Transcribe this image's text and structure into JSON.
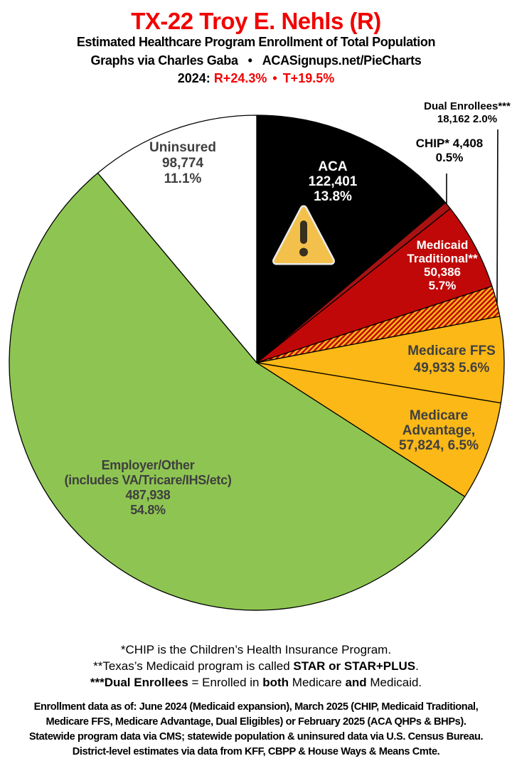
{
  "header": {
    "title": "TX-22 Troy E. Nehls (R)",
    "subtitle": "Estimated Healthcare Program Enrollment of Total Population",
    "credit_left": "Graphs via Charles Gaba",
    "credit_bullet": "•",
    "credit_right": "ACASignups.net/PieCharts",
    "year_label": "2024:",
    "partisan_lean_1": "R+24.3%",
    "partisan_bullet": "•",
    "partisan_lean_2": "T+19.5%"
  },
  "colors": {
    "title_red": "#f20202",
    "pie_black": "#000000",
    "pie_dark_red": "#a81212",
    "pie_red": "#c10808",
    "pie_gold": "#fbb816",
    "pie_green": "#8ec552",
    "pie_white": "#ffffff",
    "label_gray": "#3f3f3f",
    "warning_fill": "#f3c14b",
    "warning_mark": "#38301f"
  },
  "chart_data": {
    "type": "pie",
    "title": "Estimated Healthcare Program Enrollment of Total Population",
    "start": "12-o-clock",
    "direction": "clockwise",
    "slices": [
      {
        "id": "aca",
        "name": "ACA",
        "value": 122401,
        "pct": 13.8,
        "color": "#000000",
        "label_lines": [
          "ACA",
          "122,401",
          "13.8%"
        ]
      },
      {
        "id": "chip",
        "name": "CHIP",
        "value": 4408,
        "pct": 0.5,
        "color": "#a81212",
        "label_lines": [
          "CHIP* 4,408",
          "0.5%"
        ]
      },
      {
        "id": "medicaid-traditional",
        "name": "Medicaid Traditional",
        "value": 50386,
        "pct": 5.7,
        "color": "#c10808",
        "label_lines": [
          "Medicaid",
          "Traditional**",
          "50,386",
          "5.7%"
        ]
      },
      {
        "id": "dual-enrollees",
        "name": "Dual Enrollees",
        "value": 18162,
        "pct": 2.0,
        "color": "hatch",
        "label_lines": [
          "Dual Enrollees***",
          "18,162 2.0%"
        ]
      },
      {
        "id": "medicare-ffs",
        "name": "Medicare FFS",
        "value": 49933,
        "pct": 5.6,
        "color": "#fbb816",
        "label_lines": [
          "Medicare FFS",
          "49,933 5.6%"
        ]
      },
      {
        "id": "medicare-advantage",
        "name": "Medicare Advantage",
        "value": 57824,
        "pct": 6.5,
        "color": "#fbb816",
        "label_lines": [
          "Medicare",
          "Advantage,",
          "57,824, 6.5%"
        ]
      },
      {
        "id": "employer-other",
        "name": "Employer/Other (includes VA/Tricare/IHS/etc)",
        "value": 487938,
        "pct": 54.8,
        "color": "#8ec552",
        "label_lines": [
          "Employer/Other",
          "(includes VA/Tricare/IHS/etc)",
          "487,938",
          "54.8%"
        ]
      },
      {
        "id": "uninsured",
        "name": "Uninsured",
        "value": 98774,
        "pct": 11.1,
        "color": "#ffffff",
        "label_lines": [
          "Uninsured",
          "98,774",
          "11.1%"
        ]
      }
    ]
  },
  "footnotes": {
    "line1": "*CHIP is the Children’s Health Insurance Program.",
    "line2_pre": "**Texas’s Medicaid program is called ",
    "line2_bold": "STAR or STAR+PLUS",
    "line2_post": ".",
    "line3_bold1": "***Dual Enrollees",
    "line3_mid1": " = Enrolled in ",
    "line3_bold2": "both",
    "line3_mid2": " Medicare ",
    "line3_bold3": "and",
    "line3_post": " Medicaid."
  },
  "source": {
    "lines": [
      "Enrollment data as of: June 2024 (Medicaid expansion), March 2025 (CHIP, Medicaid Traditional,",
      "Medicare FFS, Medicare Advantage, Dual Eligibles) or February 2025 (ACA QHPs & BHPs).",
      "Statewide program data via CMS; statewide population & uninsured data via U.S. Census Bureau.",
      "District-level estimates via data from KFF, CBPP & House Ways & Means Cmte."
    ]
  }
}
